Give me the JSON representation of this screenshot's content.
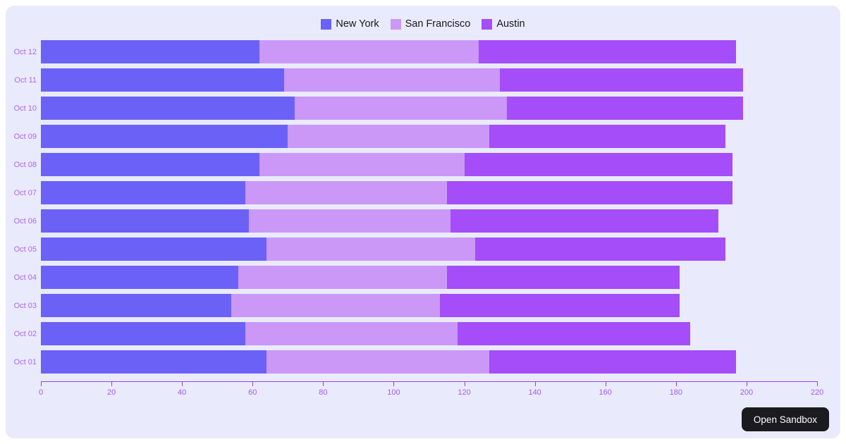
{
  "page": {
    "background": "#ffffff",
    "card_background": "#e9ebfc"
  },
  "chart_data": {
    "type": "bar",
    "orientation": "horizontal",
    "stacked": true,
    "title": "",
    "xlabel": "",
    "ylabel": "",
    "categories": [
      "Oct 12",
      "Oct 11",
      "Oct 10",
      "Oct 09",
      "Oct 08",
      "Oct 07",
      "Oct 06",
      "Oct 05",
      "Oct 04",
      "Oct 03",
      "Oct 02",
      "Oct 01"
    ],
    "series": [
      {
        "name": "New York",
        "color": "#6b61f7",
        "values": [
          62,
          69,
          72,
          70,
          62,
          58,
          59,
          64,
          56,
          54,
          58,
          64
        ]
      },
      {
        "name": "San Francisco",
        "color": "#cb98f7",
        "values": [
          62,
          61,
          60,
          57,
          58,
          57,
          57,
          59,
          59,
          59,
          60,
          63
        ]
      },
      {
        "name": "Austin",
        "color": "#a44df8",
        "values": [
          73,
          69,
          67,
          67,
          76,
          81,
          76,
          71,
          66,
          68,
          66,
          70
        ]
      }
    ],
    "xlim": [
      0,
      220
    ],
    "x_ticks": [
      0,
      20,
      40,
      60,
      80,
      100,
      120,
      140,
      160,
      180,
      200,
      220
    ],
    "legend_position": "top",
    "grid": false,
    "axis_color": "#9a3de0",
    "tick_label_color": "#a855f7",
    "category_label_color": "#af64f0"
  },
  "sandbox_button": {
    "label": "Open Sandbox",
    "background": "#1b1b1f",
    "text_color": "#ffffff"
  }
}
